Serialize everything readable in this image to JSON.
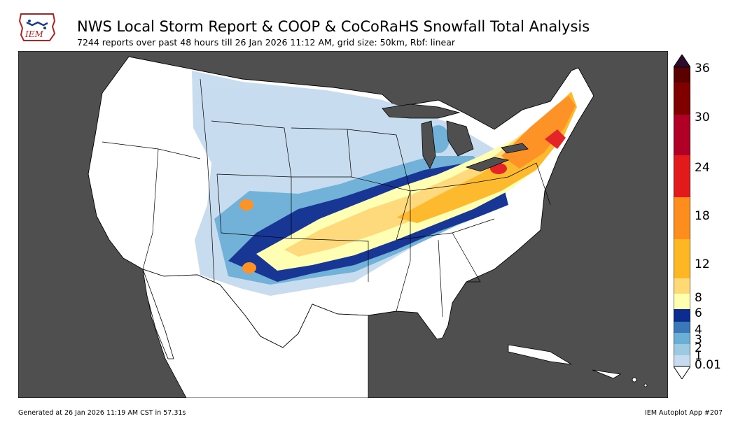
{
  "header": {
    "title": "NWS Local Storm Report & COOP & CoCoRaHS Snowfall Total Analysis",
    "subtitle": "7244 reports over past 48 hours till 26 Jan 2026 11:12 AM, grid size: 50km, Rbf: linear",
    "logo_text": "IEM"
  },
  "colorbar": {
    "labels": [
      "36",
      "30",
      "24",
      "18",
      "12",
      "8",
      "6",
      "4",
      "3",
      "2",
      "1",
      "0.01"
    ],
    "bins": [
      {
        "color": "#c6dbef"
      },
      {
        "color": "#9ecae1"
      },
      {
        "color": "#6baed6"
      },
      {
        "color": "#3a78b8"
      },
      {
        "color": "#0c2c8f"
      },
      {
        "color": "#ffffb0"
      },
      {
        "color": "#fed976"
      },
      {
        "color": "#fdb724"
      },
      {
        "color": "#fd8d1c"
      },
      {
        "color": "#e31a1c"
      },
      {
        "color": "#b10026"
      },
      {
        "color": "#800000"
      },
      {
        "color": "#5a0000"
      }
    ],
    "extend_over_color": "#2d0a2e"
  },
  "colors": {
    "background": "#4f4f4f",
    "land": "#ffffff"
  },
  "footer": {
    "generated": "Generated at 26 Jan 2026 11:19 AM CST in 57.31s",
    "app": "IEM Autoplot App #207"
  }
}
